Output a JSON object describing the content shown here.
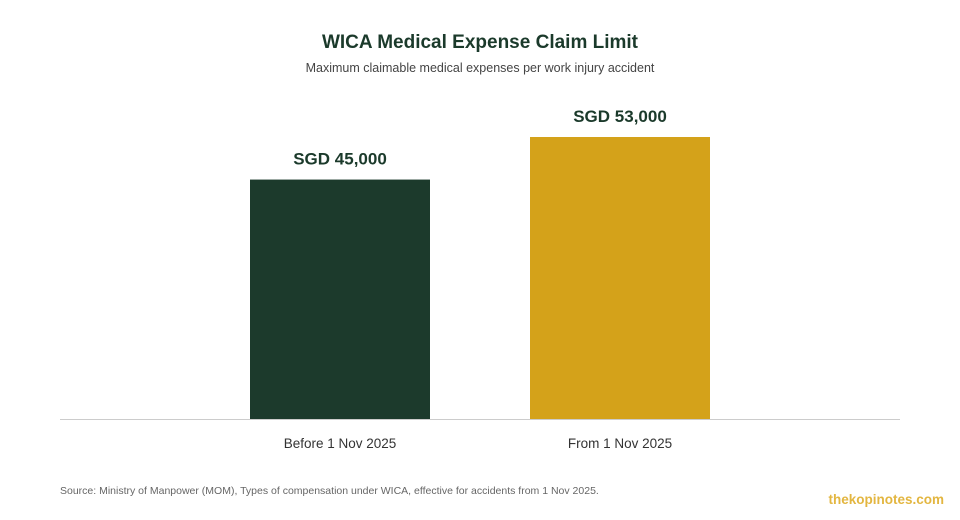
{
  "colors": {
    "title": "#1b3a2b",
    "axis": "#cccccc",
    "watermark": "#e3b640"
  },
  "chart_data": {
    "type": "bar",
    "title": "WICA Medical Expense Claim Limit",
    "subtitle": "Maximum claimable medical expenses per work injury accident",
    "categories": [
      "Before 1 Nov 2025",
      "From 1 Nov 2025"
    ],
    "values": [
      45000,
      53000
    ],
    "data_labels": [
      "SGD 45,000",
      "SGD 53,000"
    ],
    "bar_colors": [
      "#1c3a2c",
      "#d4a21a"
    ],
    "xlabel": "",
    "ylabel": "",
    "ylim": [
      0,
      60000
    ],
    "grid": false,
    "legend": "none"
  },
  "footer": {
    "source": "Source: Ministry of Manpower (MOM), Types of compensation under WICA, effective for accidents from 1 Nov 2025.",
    "watermark": "thekopinotes.com"
  }
}
